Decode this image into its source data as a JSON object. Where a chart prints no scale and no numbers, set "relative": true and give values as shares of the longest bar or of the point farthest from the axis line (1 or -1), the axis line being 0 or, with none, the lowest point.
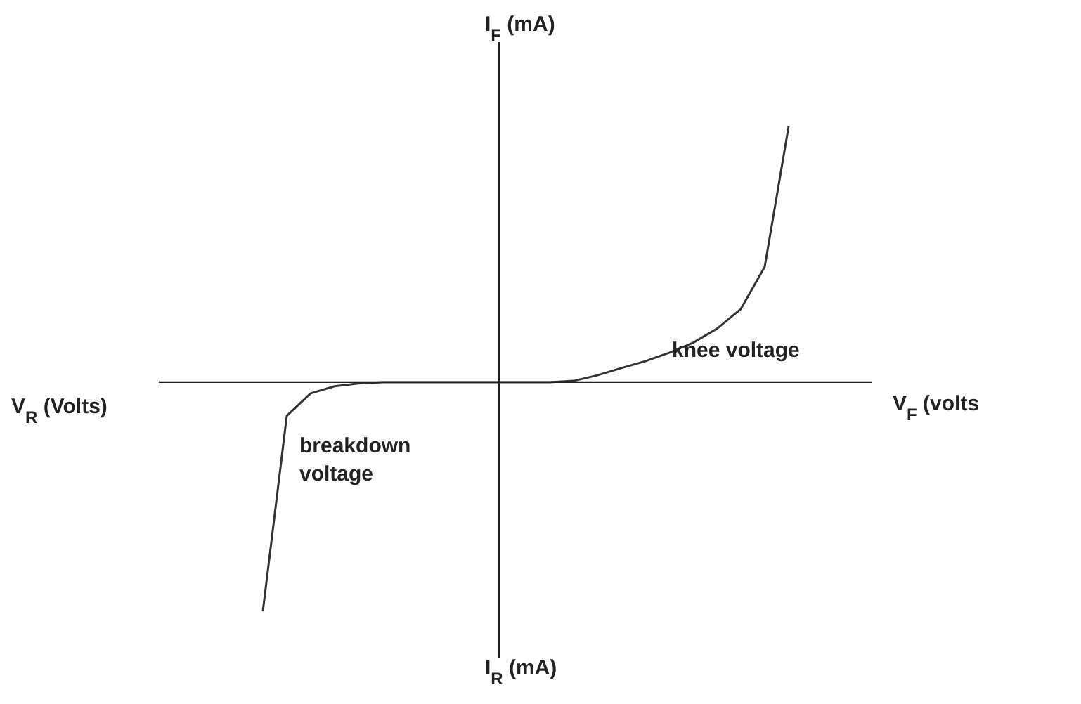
{
  "chart_data": {
    "type": "line",
    "relative": true,
    "xlabel": "V$_{F}$ (volts",
    "ylabel": "I$_{F}$ (mA)",
    "categories": [
      null,
      null,
      null,
      null,
      null,
      null,
      null,
      null,
      null,
      null,
      null,
      null,
      null,
      null,
      null,
      null,
      null,
      null,
      null,
      null,
      null,
      null,
      null
    ],
    "values": [
      -0.896,
      -0.132,
      -0.044,
      -0.016,
      -0.005,
      0,
      0,
      0,
      0,
      0,
      0,
      0,
      0,
      0.005,
      0.027,
      0.055,
      0.082,
      0.115,
      0.154,
      0.209,
      0.286,
      0.451,
      1.0
    ],
    "color": "#333333",
    "marker": "none",
    "line_style": "solid",
    "annotations": [
      "knee voltage",
      "breakdown voltage",
      "V$_{R}$ (Volts)",
      "I$_{R}$ (mA)"
    ]
  }
}
